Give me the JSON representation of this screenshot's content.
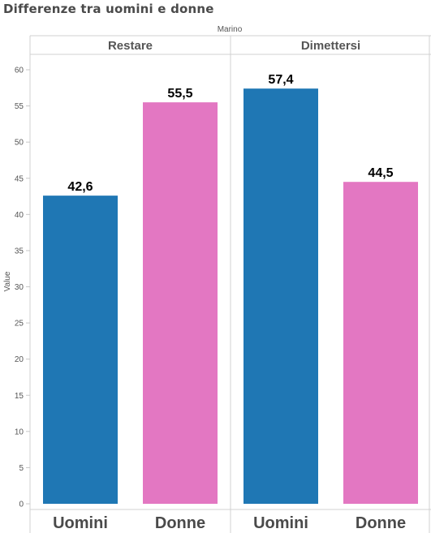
{
  "title": "Differenze tra uomini e donne",
  "chart_data": {
    "type": "bar",
    "column_header": "Marino",
    "ylabel": "Value",
    "ylim": [
      0,
      60
    ],
    "yticks": [
      0,
      5,
      10,
      15,
      20,
      25,
      30,
      35,
      40,
      45,
      50,
      55,
      60
    ],
    "panels": [
      {
        "name": "Restare",
        "categories": [
          "Uomini",
          "Donne"
        ],
        "values": [
          42.6,
          55.5
        ],
        "labels": [
          "42,6",
          "55,5"
        ]
      },
      {
        "name": "Dimettersi",
        "categories": [
          "Uomini",
          "Donne"
        ],
        "values": [
          57.4,
          44.5
        ],
        "labels": [
          "57,4",
          "44,5"
        ]
      }
    ],
    "colors": {
      "Uomini": "#1f77b4",
      "Donne": "#e377c2"
    },
    "grid": false
  }
}
